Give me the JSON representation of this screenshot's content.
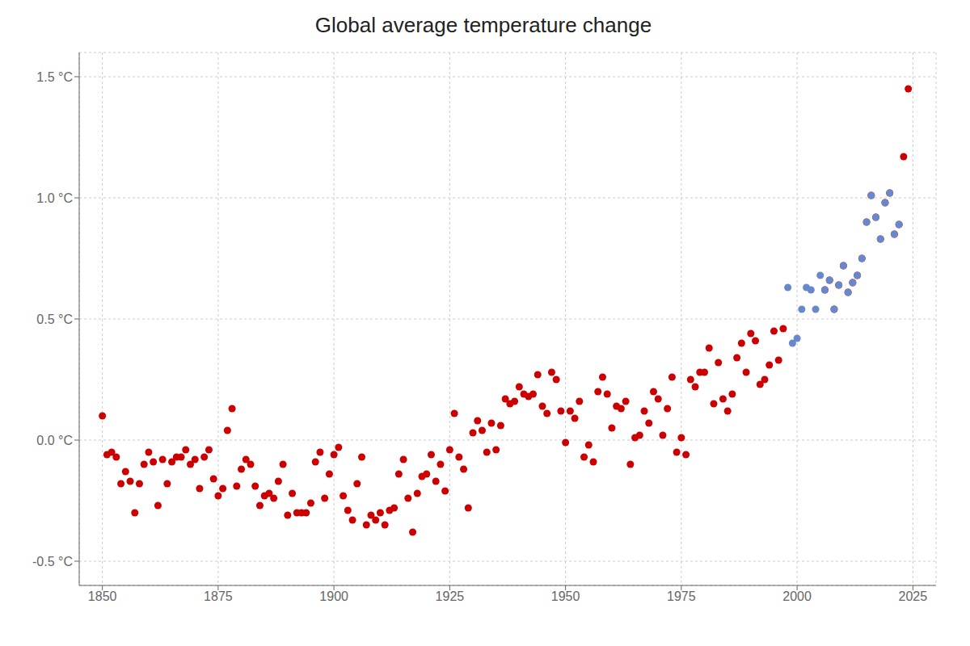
{
  "chart_data": {
    "type": "scatter",
    "title": "Global average temperature change",
    "xlim": [
      1845,
      2030
    ],
    "ylim": [
      -0.6,
      1.6
    ],
    "xticks": [
      1850,
      1875,
      1900,
      1925,
      1950,
      1975,
      2000,
      2025
    ],
    "yticks": [
      {
        "value": -0.5,
        "label": "-0.5 °C"
      },
      {
        "value": 0.0,
        "label": "0.0 °C"
      },
      {
        "value": 0.5,
        "label": "0.5 °C"
      },
      {
        "value": 1.0,
        "label": "1.0 °C"
      },
      {
        "value": 1.5,
        "label": "1.5 °C"
      }
    ],
    "grid": true,
    "series": [
      {
        "color": "#6888cc",
        "x": [
          1998,
          1999,
          2000,
          2001,
          2002,
          2003,
          2004,
          2005,
          2006,
          2007,
          2008,
          2009,
          2010,
          2011,
          2012,
          2013,
          2014,
          2015,
          2016,
          2017,
          2018,
          2019,
          2020,
          2021,
          2022
        ],
        "values": [
          0.63,
          0.4,
          0.42,
          0.54,
          0.63,
          0.62,
          0.54,
          0.68,
          0.62,
          0.66,
          0.54,
          0.64,
          0.72,
          0.61,
          0.65,
          0.68,
          0.75,
          0.9,
          1.01,
          0.92,
          0.83,
          0.98,
          1.02,
          0.85,
          0.89
        ]
      },
      {
        "color": "#cc0000",
        "x": [
          1850,
          1851,
          1852,
          1853,
          1854,
          1855,
          1856,
          1857,
          1858,
          1859,
          1860,
          1861,
          1862,
          1863,
          1864,
          1865,
          1866,
          1867,
          1868,
          1869,
          1870,
          1871,
          1872,
          1873,
          1874,
          1875,
          1876,
          1877,
          1878,
          1879,
          1880,
          1881,
          1882,
          1883,
          1884,
          1885,
          1886,
          1887,
          1888,
          1889,
          1890,
          1891,
          1892,
          1893,
          1894,
          1895,
          1896,
          1897,
          1898,
          1899,
          1900,
          1901,
          1902,
          1903,
          1904,
          1905,
          1906,
          1907,
          1908,
          1909,
          1910,
          1911,
          1912,
          1913,
          1914,
          1915,
          1916,
          1917,
          1918,
          1919,
          1920,
          1921,
          1922,
          1923,
          1924,
          1925,
          1926,
          1927,
          1928,
          1929,
          1930,
          1931,
          1932,
          1933,
          1934,
          1935,
          1936,
          1937,
          1938,
          1939,
          1940,
          1941,
          1942,
          1943,
          1944,
          1945,
          1946,
          1947,
          1948,
          1949,
          1950,
          1951,
          1952,
          1953,
          1954,
          1955,
          1956,
          1957,
          1958,
          1959,
          1960,
          1961,
          1962,
          1963,
          1964,
          1965,
          1966,
          1967,
          1968,
          1969,
          1970,
          1971,
          1972,
          1973,
          1974,
          1975,
          1976,
          1977,
          1978,
          1979,
          1980,
          1981,
          1982,
          1983,
          1984,
          1985,
          1986,
          1987,
          1988,
          1989,
          1990,
          1991,
          1992,
          1993,
          1994,
          1995,
          1996,
          1997,
          2006,
          2007,
          2008,
          2009,
          2010,
          2011,
          2012,
          2013,
          2014,
          2015,
          2016,
          2017,
          2018,
          2019,
          2020,
          2021,
          2022,
          2023,
          2024
        ],
        "values": [
          0.1,
          -0.06,
          -0.05,
          -0.07,
          -0.18,
          -0.13,
          -0.17,
          -0.3,
          -0.18,
          -0.1,
          -0.05,
          -0.09,
          -0.27,
          -0.08,
          -0.18,
          -0.09,
          -0.07,
          -0.07,
          -0.04,
          -0.1,
          -0.08,
          -0.2,
          -0.07,
          -0.04,
          -0.16,
          -0.23,
          -0.2,
          0.04,
          0.13,
          -0.19,
          -0.12,
          -0.08,
          -0.1,
          -0.19,
          -0.27,
          -0.23,
          -0.22,
          -0.24,
          -0.17,
          -0.1,
          -0.31,
          -0.22,
          -0.3,
          -0.3,
          -0.3,
          -0.26,
          -0.09,
          -0.05,
          -0.24,
          -0.14,
          -0.06,
          -0.03,
          -0.23,
          -0.29,
          -0.33,
          -0.18,
          -0.07,
          -0.35,
          -0.31,
          -0.33,
          -0.3,
          -0.35,
          -0.29,
          -0.28,
          -0.14,
          -0.08,
          -0.24,
          -0.38,
          -0.22,
          -0.15,
          -0.14,
          -0.06,
          -0.17,
          -0.1,
          -0.21,
          -0.04,
          0.11,
          -0.07,
          -0.12,
          -0.28,
          0.03,
          0.08,
          0.04,
          -0.05,
          0.07,
          -0.04,
          0.06,
          0.17,
          0.15,
          0.16,
          0.22,
          0.19,
          0.18,
          0.19,
          0.27,
          0.14,
          0.11,
          0.28,
          0.25,
          0.12,
          -0.01,
          0.12,
          0.09,
          0.16,
          -0.07,
          -0.02,
          -0.09,
          0.2,
          0.26,
          0.19,
          0.05,
          0.14,
          0.13,
          0.16,
          -0.1,
          0.01,
          0.02,
          0.12,
          0.07,
          0.2,
          0.17,
          0.02,
          0.13,
          0.26,
          -0.05,
          0.01,
          -0.06,
          0.25,
          0.22,
          0.28,
          0.28,
          0.38,
          0.15,
          0.32,
          0.17,
          0.12,
          0.19,
          0.34,
          0.4,
          0.28,
          0.44,
          0.41,
          0.23,
          0.25,
          0.31,
          0.45,
          0.33,
          0.46,
          0.62,
          0.66,
          0.54,
          0.64,
          0.72,
          0.61,
          0.65,
          0.68,
          0.75,
          0.9,
          1.01,
          0.92,
          0.83,
          0.98,
          1.02,
          0.85,
          0.89,
          1.17,
          1.45
        ]
      }
    ]
  }
}
